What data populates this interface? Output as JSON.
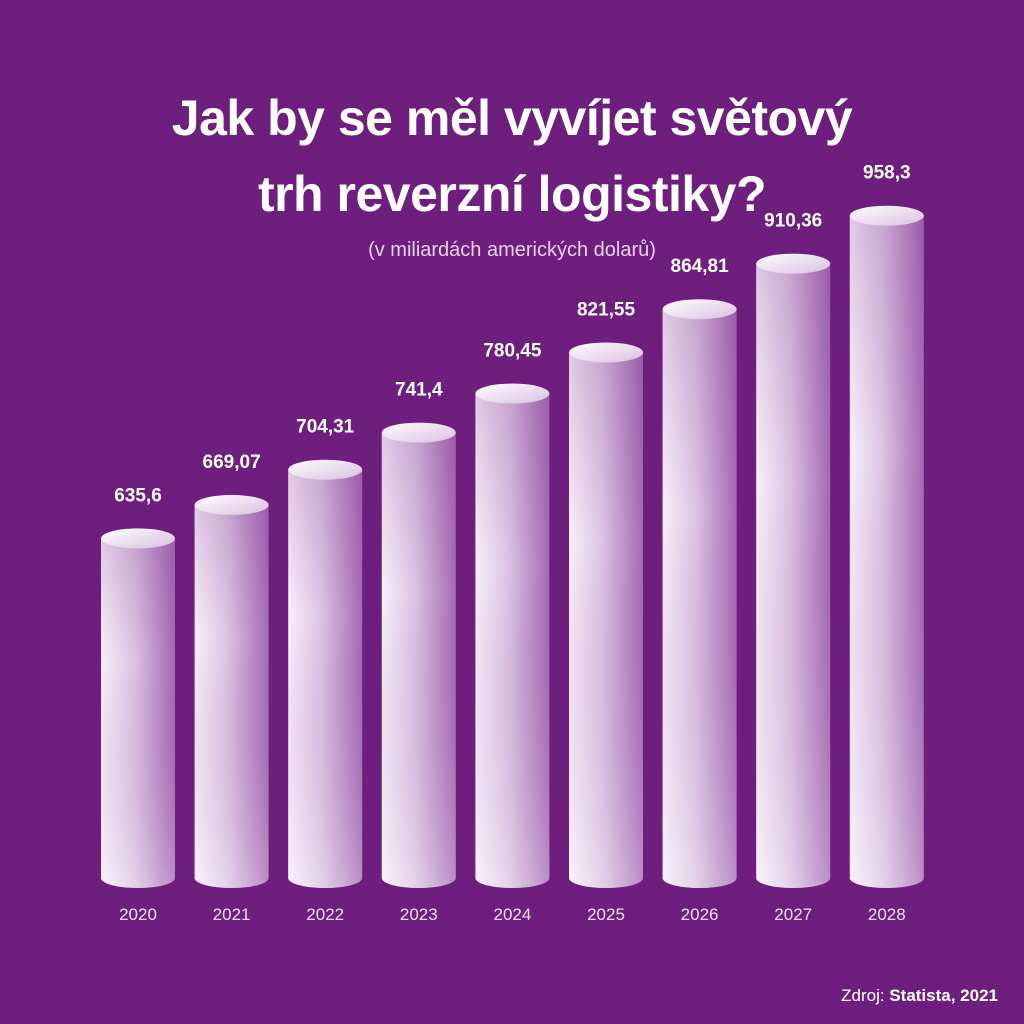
{
  "chart_data": {
    "type": "bar",
    "title_lines": [
      "Jak by se měl vyvíjet světový",
      "trh reverzní logistiky?"
    ],
    "subtitle": "(v miliardách amerických dolarů)",
    "categories": [
      "2020",
      "2021",
      "2022",
      "2023",
      "2024",
      "2025",
      "2026",
      "2027",
      "2028"
    ],
    "values": [
      635.6,
      669.07,
      704.31,
      741.4,
      780.45,
      821.55,
      864.81,
      910.36,
      958.3
    ],
    "value_labels": [
      "635,6",
      "669,07",
      "704,31",
      "741,4",
      "780,45",
      "821,55",
      "864,81",
      "910,36",
      "958,3"
    ],
    "bar_style": "3d-cylinder",
    "grid": false,
    "legend": "none"
  },
  "source": {
    "prefix": "Zdroj: ",
    "name": "Statista, 2021"
  },
  "colors": {
    "background": "#6e1e7c",
    "bar_light": "#f7eef9",
    "bar_dark": "#a56bb4",
    "text": "#ffffff"
  }
}
